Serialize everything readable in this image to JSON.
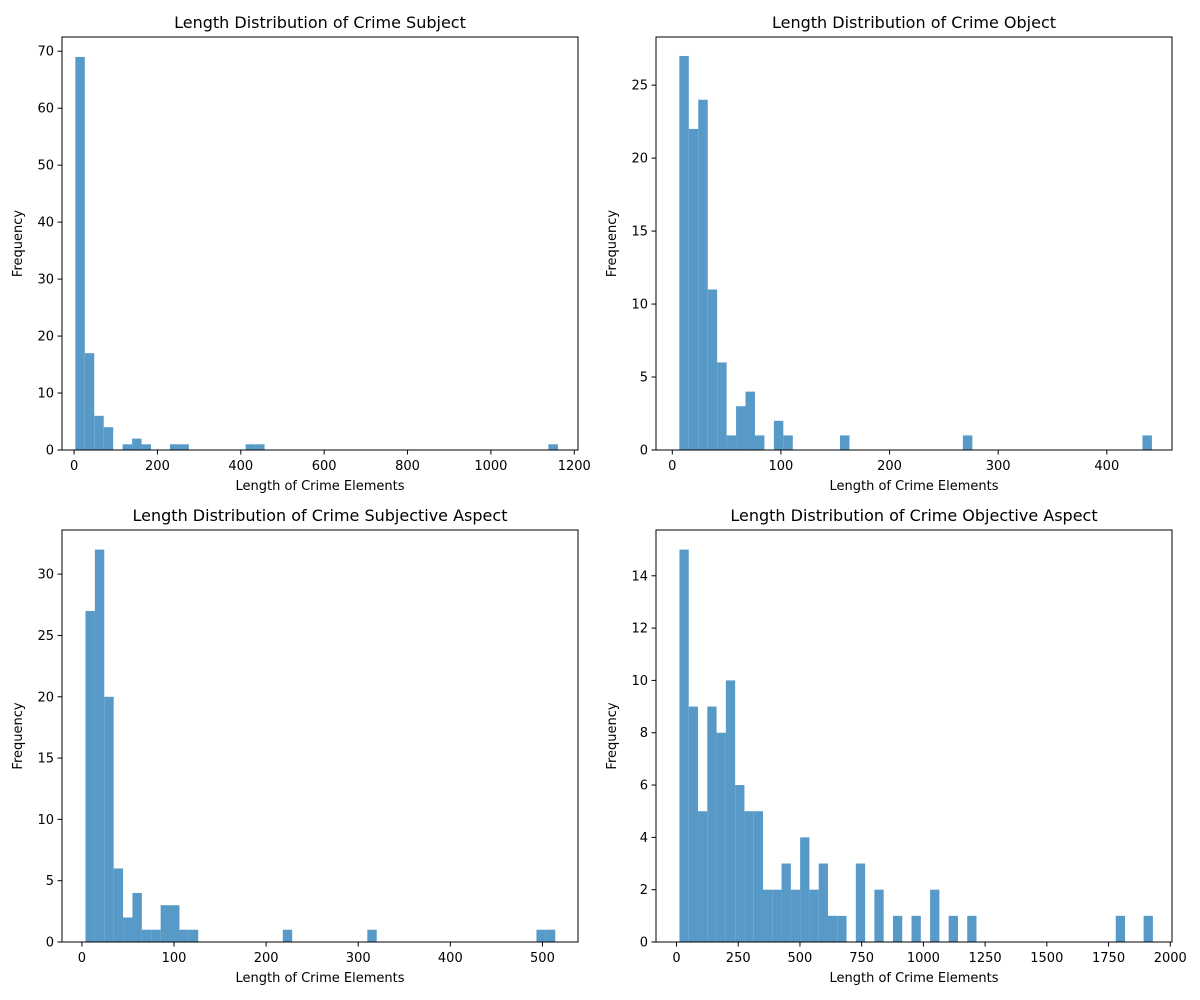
{
  "chart_data": [
    {
      "type": "bar",
      "title": "Length Distribution of Crime Subject",
      "xlabel": "Length of Crime Elements",
      "ylabel": "Frequency",
      "xlim": [
        -29,
        1209
      ],
      "ylim": [
        0,
        72.5
      ],
      "xticks": [
        0,
        200,
        400,
        600,
        800,
        1000,
        1200
      ],
      "yticks": [
        0,
        10,
        20,
        30,
        40,
        50,
        60,
        70
      ],
      "color": "#5799c7",
      "bin_edges": [
        3,
        25.7,
        48.4,
        71.1,
        93.8,
        116.5,
        139.2,
        161.9,
        184.6,
        207.3,
        230,
        252.7,
        275.4,
        298.1,
        320.8,
        343.5,
        366.2,
        388.9,
        411.6,
        434.3,
        457,
        479.7,
        502.4,
        525.1,
        547.8,
        570.5,
        593.2,
        615.9,
        638.6,
        661.3,
        684,
        706.7,
        729.4,
        752.1,
        774.8,
        797.5,
        820.2,
        842.9,
        865.6,
        888.3,
        911,
        933.7,
        956.4,
        979.1,
        1001.8,
        1024.5,
        1047.2,
        1069.9,
        1092.6,
        1115.3,
        1138,
        1160.7
      ],
      "values": [
        69,
        17,
        6,
        4,
        0,
        1,
        2,
        1,
        0,
        0,
        1,
        1,
        0,
        0,
        0,
        0,
        0,
        0,
        1,
        1,
        0,
        0,
        0,
        0,
        0,
        0,
        0,
        0,
        0,
        0,
        0,
        0,
        0,
        0,
        0,
        0,
        0,
        0,
        0,
        0,
        0,
        0,
        0,
        0,
        0,
        0,
        0,
        0,
        0,
        0,
        1
      ]
    },
    {
      "type": "bar",
      "title": "Length Distribution of Crime Object",
      "xlabel": "Length of Crime Elements",
      "ylabel": "Frequency",
      "xlim": [
        -15,
        460
      ],
      "ylim": [
        0,
        28.3
      ],
      "xticks": [
        0,
        100,
        200,
        300,
        400
      ],
      "yticks": [
        0,
        5,
        10,
        15,
        20,
        25
      ],
      "color": "#5799c7",
      "bin_edges": [
        6.5,
        15.2,
        23.9,
        32.6,
        41.3,
        50,
        58.7,
        67.4,
        76.1,
        84.8,
        93.5,
        102.2,
        110.9,
        119.6,
        128.3,
        137,
        145.7,
        154.4,
        163.1,
        171.8,
        180.5,
        189.2,
        197.9,
        206.6,
        215.3,
        224,
        232.7,
        241.4,
        250.1,
        258.8,
        267.5,
        276.2,
        284.9,
        293.6,
        302.3,
        311,
        319.7,
        328.4,
        337.1,
        345.8,
        354.5,
        363.2,
        371.9,
        380.6,
        389.3,
        398,
        406.7,
        415.4,
        424.1,
        432.8,
        441.5
      ],
      "values": [
        27,
        22,
        24,
        11,
        6,
        1,
        3,
        4,
        1,
        0,
        2,
        1,
        0,
        0,
        0,
        0,
        0,
        1,
        0,
        0,
        0,
        0,
        0,
        0,
        0,
        0,
        0,
        0,
        0,
        0,
        1,
        0,
        0,
        0,
        0,
        0,
        0,
        0,
        0,
        0,
        0,
        0,
        0,
        0,
        0,
        0,
        0,
        0,
        0,
        1
      ]
    },
    {
      "type": "bar",
      "title": "Length Distribution of Crime Subjective Aspect",
      "xlabel": "Length of Crime Elements",
      "ylabel": "Frequency",
      "xlim": [
        -21.6,
        538.6
      ],
      "ylim": [
        0,
        33.6
      ],
      "xticks": [
        0,
        100,
        200,
        300,
        400,
        500
      ],
      "yticks": [
        0,
        5,
        10,
        15,
        20,
        25,
        30
      ],
      "color": "#5799c7",
      "bin_edges": [
        3.9,
        14.1,
        24.3,
        34.5,
        44.7,
        54.9,
        65.1,
        75.3,
        85.5,
        95.7,
        105.9,
        116.1,
        126.3,
        136.5,
        146.7,
        156.9,
        167.1,
        177.3,
        187.5,
        197.7,
        207.9,
        218.1,
        228.3,
        238.5,
        248.7,
        258.9,
        269.1,
        279.3,
        289.5,
        299.7,
        309.9,
        320.1,
        330.3,
        340.5,
        350.7,
        360.9,
        371.1,
        381.3,
        391.5,
        401.7,
        411.9,
        422.1,
        432.3,
        442.5,
        452.7,
        462.9,
        473.1,
        483.3,
        493.5,
        503.7,
        513.9
      ],
      "values": [
        27,
        32,
        20,
        6,
        2,
        4,
        1,
        1,
        3,
        3,
        1,
        1,
        0,
        0,
        0,
        0,
        0,
        0,
        0,
        0,
        0,
        1,
        0,
        0,
        0,
        0,
        0,
        0,
        0,
        0,
        1,
        0,
        0,
        0,
        0,
        0,
        0,
        0,
        0,
        0,
        0,
        0,
        0,
        0,
        0,
        0,
        0,
        0,
        1,
        1
      ]
    },
    {
      "type": "bar",
      "title": "Length Distribution of Crime Objective Aspect",
      "xlabel": "Length of Crime Elements",
      "ylabel": "Frequency",
      "xlim": [
        -83,
        2007
      ],
      "ylim": [
        0,
        15.75
      ],
      "xticks": [
        0,
        250,
        500,
        750,
        1000,
        1250,
        1500,
        1750,
        2000
      ],
      "yticks": [
        0,
        2,
        4,
        6,
        8,
        10,
        12,
        14
      ],
      "color": "#5799c7",
      "bin_edges": [
        12,
        49.6,
        87.2,
        124.8,
        162.4,
        200,
        237.6,
        275.2,
        312.8,
        350.4,
        388,
        425.6,
        463.2,
        500.8,
        538.4,
        576,
        613.6,
        651.2,
        688.8,
        726.4,
        764,
        801.6,
        839.2,
        876.8,
        914.4,
        952,
        989.6,
        1027.2,
        1064.8,
        1102.4,
        1140,
        1177.6,
        1215.2,
        1252.8,
        1290.4,
        1328,
        1365.6,
        1403.2,
        1440.8,
        1478.4,
        1516,
        1553.6,
        1591.2,
        1628.8,
        1666.4,
        1704,
        1741.6,
        1779.2,
        1816.8,
        1854.4,
        1892,
        1929.6
      ],
      "values": [
        15,
        9,
        5,
        9,
        8,
        10,
        6,
        5,
        5,
        2,
        2,
        3,
        2,
        4,
        2,
        3,
        1,
        1,
        0,
        3,
        0,
        2,
        0,
        1,
        0,
        1,
        0,
        2,
        0,
        1,
        0,
        1,
        0,
        0,
        0,
        0,
        0,
        0,
        0,
        0,
        0,
        0,
        0,
        0,
        0,
        0,
        0,
        1,
        0,
        0,
        1
      ]
    }
  ]
}
